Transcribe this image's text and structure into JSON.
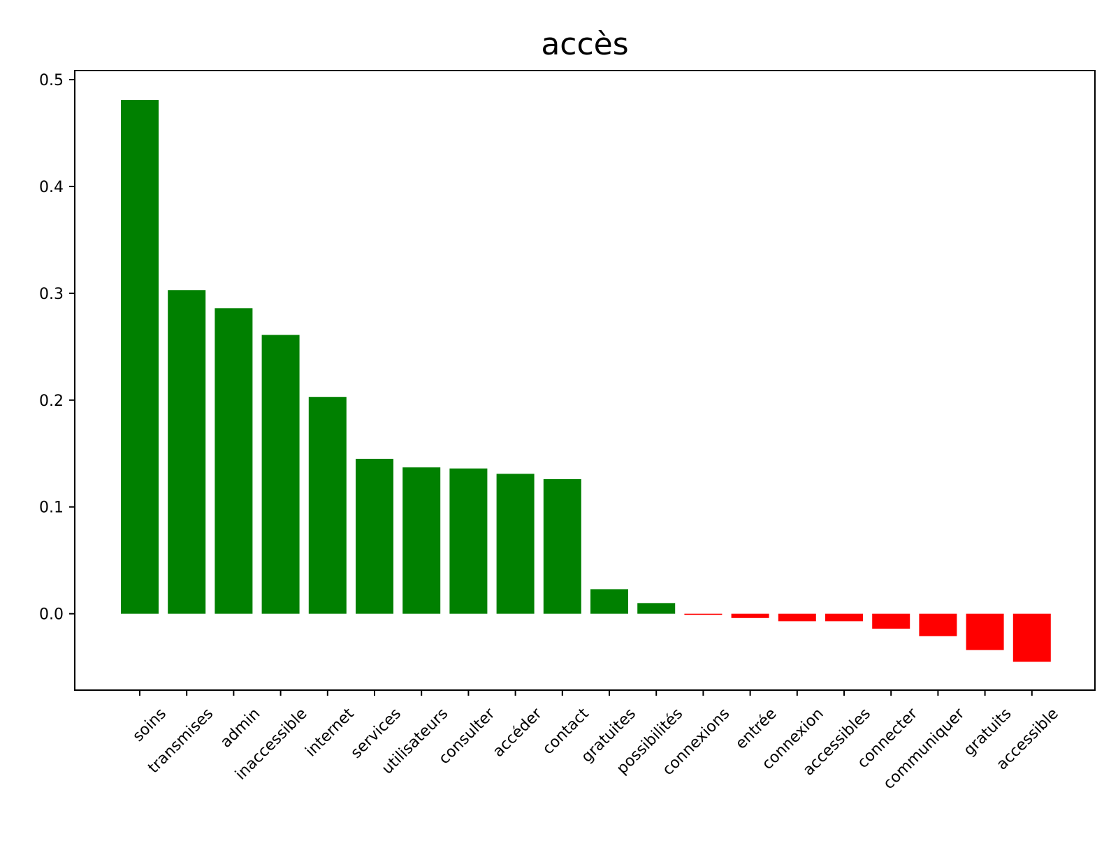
{
  "chart_data": {
    "type": "bar",
    "title": "accès",
    "xlabel": "",
    "ylabel": "",
    "categories": [
      "soins",
      "transmises",
      "admin",
      "inaccessible",
      "internet",
      "services",
      "utilisateurs",
      "consulter",
      "accéder",
      "contact",
      "gratuites",
      "possibilités",
      "connexions",
      "entrée",
      "connexion",
      "accessibles",
      "connecter",
      "communiquer",
      "gratuits",
      "accessible"
    ],
    "values": [
      0.481,
      0.303,
      0.286,
      0.261,
      0.203,
      0.145,
      0.137,
      0.136,
      0.131,
      0.126,
      0.023,
      0.01,
      -0.001,
      -0.004,
      -0.007,
      -0.007,
      -0.014,
      -0.021,
      -0.034,
      -0.045
    ],
    "ylim": [
      -0.0715,
      0.5085
    ],
    "yticks": [
      0.0,
      0.1,
      0.2,
      0.3,
      0.4,
      0.5
    ],
    "ytick_labels": [
      "0.0",
      "0.1",
      "0.2",
      "0.3",
      "0.4",
      "0.5"
    ],
    "colors": {
      "positive": "#008000",
      "negative": "#ff0000"
    },
    "grid": false,
    "legend": "none"
  }
}
